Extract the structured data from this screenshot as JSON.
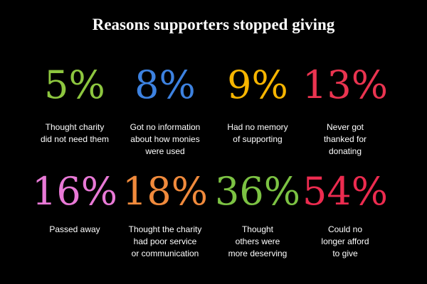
{
  "chart_data": {
    "type": "stat-grid",
    "title": "Reasons supporters stopped giving",
    "categories": [
      "Thought charity\ndid not need them",
      "Got no information\nabout how monies\nwere used",
      "Had no memory\nof supporting",
      "Never got\nthanked for\ndonating",
      "Passed away",
      "Thought the charity\nhad poor service\nor communication",
      "Thought\nothers were\nmore deserving",
      "Could no\nlonger afford\nto give"
    ],
    "values": [
      5,
      8,
      9,
      13,
      16,
      18,
      36,
      54
    ],
    "value_labels": [
      "5%",
      "8%",
      "9%",
      "13%",
      "16%",
      "18%",
      "36%",
      "54%"
    ],
    "colors": [
      "#8dc63f",
      "#3d82e0",
      "#f7b500",
      "#ea3450",
      "#e879d6",
      "#f08a3c",
      "#7cc243",
      "#ec2b4f"
    ]
  }
}
